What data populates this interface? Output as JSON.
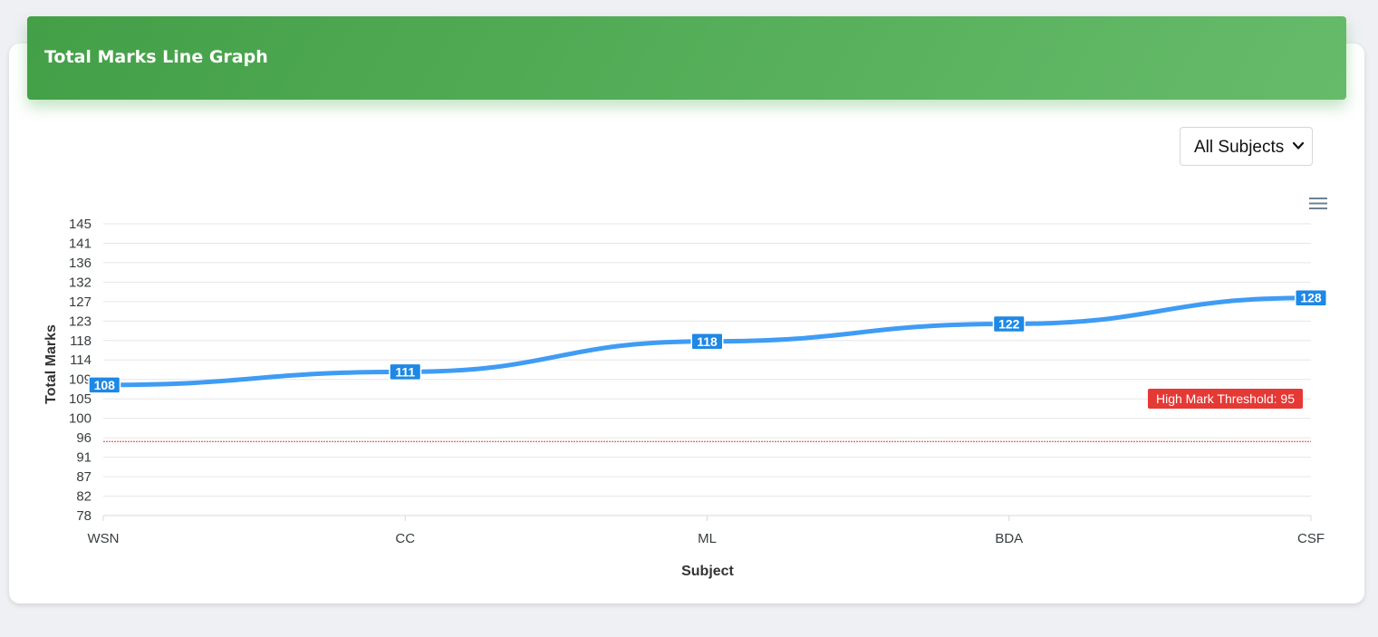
{
  "header": {
    "title": "Total Marks Line Graph"
  },
  "filter": {
    "selected": "All Subjects"
  },
  "menu": {
    "icon": "hamburger-menu-icon"
  },
  "colors": {
    "line": "#3f9cf4",
    "label_bg": "#1e88e5",
    "threshold": "#e53935",
    "header": "#4caf50"
  },
  "chart_data": {
    "type": "line",
    "categories": [
      "WSN",
      "CC",
      "ML",
      "BDA",
      "CSF"
    ],
    "series": [
      {
        "values": [
          108,
          111,
          118,
          122,
          128
        ]
      }
    ],
    "xlabel": "Subject",
    "ylabel": "Total Marks",
    "ylim": [
      78,
      145
    ],
    "yticks": [
      "145",
      "141",
      "136",
      "132",
      "127",
      "123",
      "118",
      "114",
      "109",
      "105",
      "100",
      "96",
      "91",
      "87",
      "82",
      "78"
    ],
    "data_labels": [
      "108",
      "111",
      "118",
      "122",
      "128"
    ],
    "grid": true,
    "annotations": [
      {
        "type": "y-line",
        "y": 95,
        "label": "High Mark Threshold: 95"
      }
    ]
  }
}
